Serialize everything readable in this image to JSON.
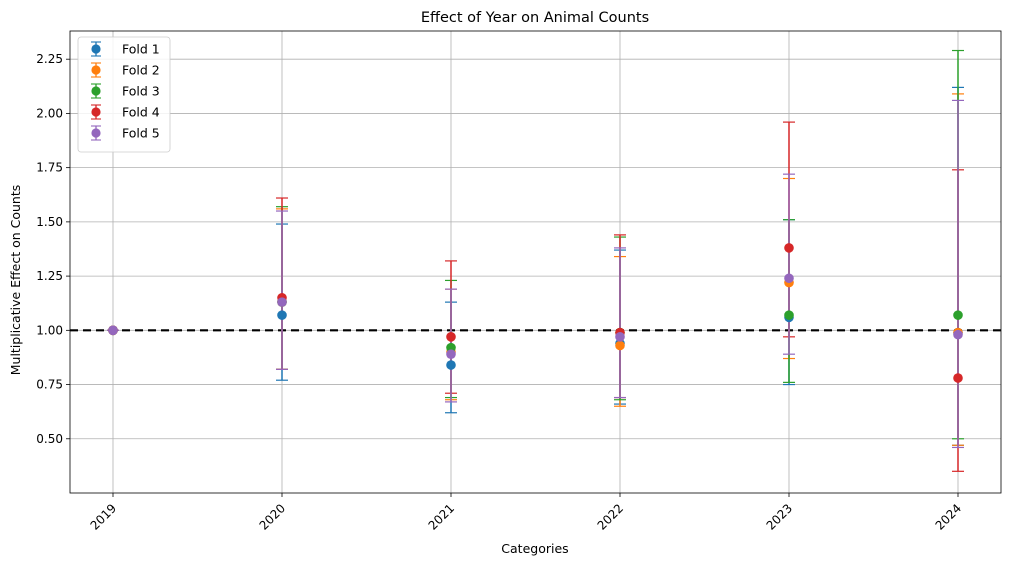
{
  "chart_data": {
    "type": "scatter",
    "title": "Effect of Year on Animal Counts",
    "xlabel": "Categories",
    "ylabel": "Multiplicative Effect on Counts",
    "categories": [
      "2019",
      "2020",
      "2021",
      "2022",
      "2023",
      "2024"
    ],
    "ylim": [
      0.25,
      2.38
    ],
    "yticks": [
      "0.50",
      "0.75",
      "1.00",
      "1.25",
      "1.50",
      "1.75",
      "2.00",
      "2.25"
    ],
    "grid": true,
    "legend_position": "top-left",
    "reference_line": 1.0,
    "series": [
      {
        "name": "Fold 1",
        "color": "#1f77b4",
        "values": [
          1.0,
          1.07,
          0.84,
          0.94,
          1.06,
          0.99
        ],
        "lower": [
          1.0,
          0.77,
          0.62,
          0.66,
          0.75,
          0.47
        ],
        "upper": [
          1.0,
          1.49,
          1.13,
          1.37,
          1.51,
          2.12
        ]
      },
      {
        "name": "Fold 2",
        "color": "#ff7f0e",
        "values": [
          1.0,
          1.13,
          0.9,
          0.93,
          1.22,
          0.99
        ],
        "lower": [
          1.0,
          0.82,
          0.68,
          0.65,
          0.87,
          0.47
        ],
        "upper": [
          1.0,
          1.56,
          1.19,
          1.34,
          1.7,
          2.09
        ]
      },
      {
        "name": "Fold 3",
        "color": "#2ca02c",
        "values": [
          1.0,
          1.13,
          0.92,
          0.99,
          1.07,
          1.07
        ],
        "lower": [
          1.0,
          0.82,
          0.69,
          0.68,
          0.76,
          0.5
        ],
        "upper": [
          1.0,
          1.57,
          1.23,
          1.43,
          1.51,
          2.29
        ]
      },
      {
        "name": "Fold 4",
        "color": "#d62728",
        "values": [
          1.0,
          1.15,
          0.97,
          0.99,
          1.38,
          0.78
        ],
        "lower": [
          1.0,
          0.82,
          0.71,
          0.69,
          0.97,
          0.35
        ],
        "upper": [
          1.0,
          1.61,
          1.32,
          1.44,
          1.96,
          1.74
        ]
      },
      {
        "name": "Fold 5",
        "color": "#9467bd",
        "values": [
          1.0,
          1.13,
          0.89,
          0.97,
          1.24,
          0.98
        ],
        "lower": [
          1.0,
          0.82,
          0.67,
          0.69,
          0.89,
          0.46
        ],
        "upper": [
          1.0,
          1.55,
          1.19,
          1.38,
          1.72,
          2.06
        ]
      }
    ]
  }
}
